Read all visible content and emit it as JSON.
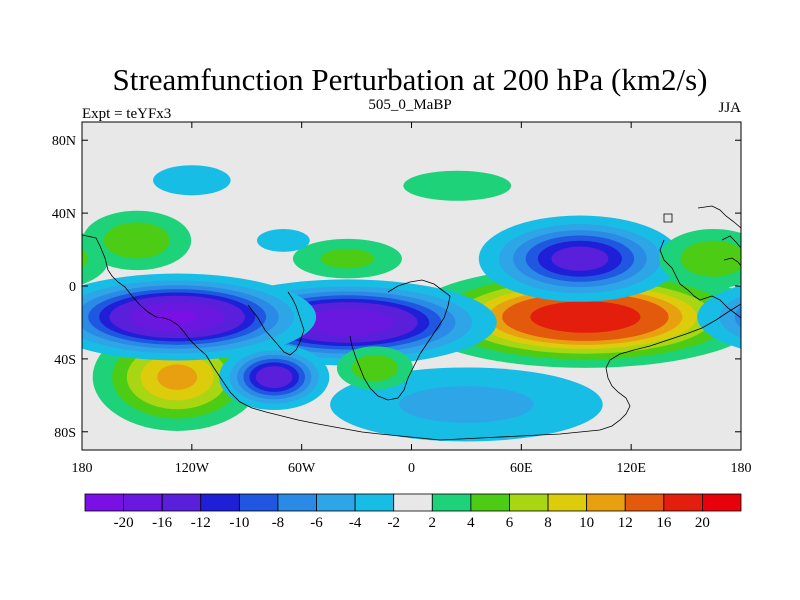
{
  "chart_data": {
    "type": "heatmap",
    "title": "Streamfunction Perturbation at 200 hPa (km2/s)",
    "left_string": "Expt = teYFx3",
    "center_string": "505_0_MaBP",
    "right_string": "JJA",
    "xlabel": "",
    "ylabel": "",
    "xlim": [
      -180,
      180
    ],
    "ylim": [
      -90,
      90
    ],
    "x_ticks": [
      {
        "value": -180,
        "label": "180"
      },
      {
        "value": -120,
        "label": "120W"
      },
      {
        "value": -60,
        "label": "60W"
      },
      {
        "value": 0,
        "label": "0"
      },
      {
        "value": 60,
        "label": "60E"
      },
      {
        "value": 120,
        "label": "120E"
      },
      {
        "value": 180,
        "label": "180"
      }
    ],
    "y_ticks": [
      {
        "value": 80,
        "label": "80N"
      },
      {
        "value": 40,
        "label": "40N"
      },
      {
        "value": 0,
        "label": "0"
      },
      {
        "value": -40,
        "label": "40S"
      },
      {
        "value": -80,
        "label": "80S"
      }
    ],
    "colorbar": {
      "colors": [
        "#7a10e6",
        "#6a18e0",
        "#5a1fdb",
        "#1f1fd8",
        "#1f57e0",
        "#2a8ae6",
        "#2ea5e6",
        "#18bde6",
        "#e8e8e8",
        "#1ed27a",
        "#4ccc14",
        "#a8d612",
        "#dccc0c",
        "#e8a010",
        "#e45a0c",
        "#e41e0c",
        "#e8000a"
      ],
      "labels": [
        "-20",
        "-16",
        "-12",
        "-10",
        "-8",
        "-6",
        "-4",
        "-2",
        "2",
        "4",
        "6",
        "8",
        "10",
        "12",
        "16",
        "20"
      ]
    },
    "features": [
      {
        "name": "nh-pacific-positive",
        "lon": -150,
        "lat": 25,
        "amp": 6,
        "sx": 20,
        "sy": 11
      },
      {
        "name": "sh-pacific-negative",
        "lon": -128,
        "lat": -17,
        "amp": -21,
        "sx": 35,
        "sy": 11
      },
      {
        "name": "sh-pacific-positive",
        "lon": -128,
        "lat": -50,
        "amp": 11,
        "sx": 25,
        "sy": 16
      },
      {
        "name": "sh-south-america-negative",
        "lon": -75,
        "lat": -50,
        "amp": -15,
        "sx": 15,
        "sy": 9
      },
      {
        "name": "sh-atlantic-negative",
        "lon": -35,
        "lat": -20,
        "amp": -20,
        "sx": 38,
        "sy": 11
      },
      {
        "name": "sh-southern-ocean-negative",
        "lon": 30,
        "lat": -65,
        "amp": -5,
        "sx": 55,
        "sy": 15
      },
      {
        "name": "sh-africa-positive",
        "lon": -20,
        "lat": -45,
        "amp": 6,
        "sx": 14,
        "sy": 8
      },
      {
        "name": "sh-indian-positive",
        "lon": 95,
        "lat": -17,
        "amp": 20,
        "sx": 45,
        "sy": 13
      },
      {
        "name": "nh-asia-negative",
        "lon": 92,
        "lat": 15,
        "amp": -14,
        "sx": 28,
        "sy": 12
      },
      {
        "name": "nh-north-atlantic-positive",
        "lon": -35,
        "lat": 15,
        "amp": 5,
        "sx": 22,
        "sy": 8
      },
      {
        "name": "nh-north-pacific-negative",
        "lon": -120,
        "lat": 58,
        "amp": -4,
        "sx": 18,
        "sy": 7
      },
      {
        "name": "nh-europe-positive",
        "lon": 25,
        "lat": 55,
        "amp": 4,
        "sx": 25,
        "sy": 7
      },
      {
        "name": "nh-west-pacific-positive",
        "lon": 165,
        "lat": 15,
        "amp": 6,
        "sx": 20,
        "sy": 11
      },
      {
        "name": "nh-west-atlantic-negative",
        "lon": -70,
        "lat": 25,
        "amp": -3,
        "sx": 16,
        "sy": 7
      }
    ]
  }
}
